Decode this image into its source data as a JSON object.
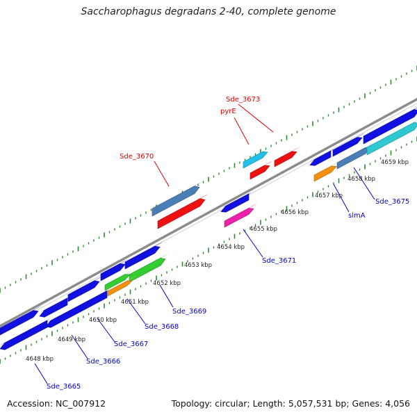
{
  "title": "Saccharophagus degradans 2-40, complete genome",
  "footer": {
    "accession": "Accession: NC_007912",
    "summary": "Topology: circular; Length: 5,057,531 bp; Genes: 4,056"
  },
  "colors": {
    "gene_blue": "#1010e0",
    "steel_blue": "#4a7fb5",
    "red": "#ee1111",
    "cyan": "#22c0e8",
    "teal": "#30c8d0",
    "green": "#33cc33",
    "orange": "#f39010",
    "magenta": "#ee22aa",
    "backbone": "#8c8c8c",
    "tick_green": "#2e8b2e",
    "label_red": "#e00000",
    "label_blue": "#0000cc"
  },
  "tick_labels": [
    "4648 kbp",
    "4649 kbp",
    "4650 kbp",
    "4651 kbp",
    "4652 kbp",
    "4653 kbp",
    "4654 kbp",
    "4655 kbp",
    "4656 kbp",
    "4657 kbp",
    "4658 kbp",
    "4659 kbp"
  ],
  "labels": {
    "sde_3665": "Sde_3665",
    "sde_3666": "Sde_3666",
    "sde_3667": "Sde_3667",
    "sde_3668": "Sde_3668",
    "sde_3669": "Sde_3669",
    "sde_3670": "Sde_3670",
    "sde_3671": "Sde_3671",
    "pyre": "pyrE",
    "sde_3673": "Sde_3673",
    "slma": "slmA",
    "sde_3675": "Sde_3675"
  }
}
